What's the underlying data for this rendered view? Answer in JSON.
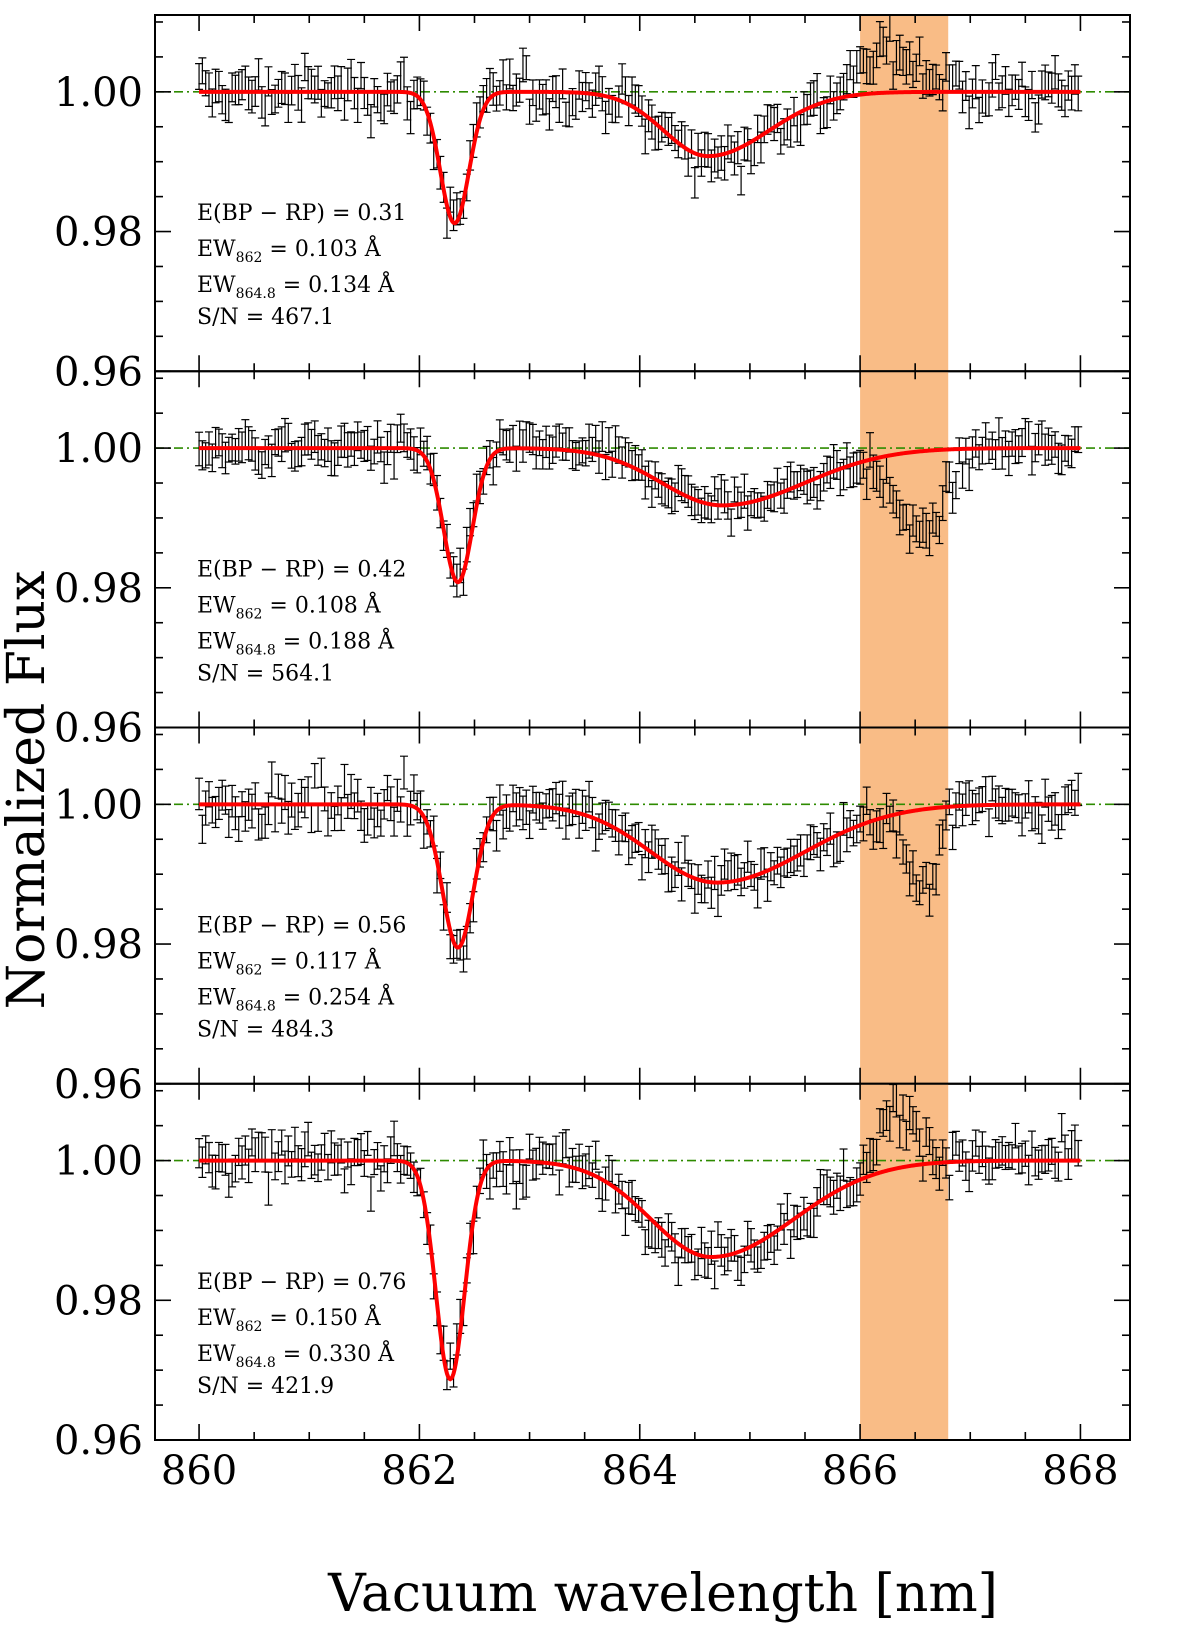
{
  "chart_data": {
    "type": "line",
    "title": "",
    "xlabel": "Vacuum wavelength [nm]",
    "ylabel": "Normalized Flux",
    "xlim": [
      859.6,
      868.45
    ],
    "ylim": [
      0.96,
      1.011
    ],
    "x_ticks": [
      860,
      862,
      864,
      866,
      868
    ],
    "x_tick_labels": [
      "860",
      "862",
      "864",
      "866",
      "868"
    ],
    "y_ticks": [
      0.96,
      0.98,
      1.0
    ],
    "y_tick_labels": [
      "0.96",
      "0.98",
      "1.00"
    ],
    "continuum_level": 1.0,
    "shaded_band": {
      "x_start": 866.0,
      "x_end": 866.8
    },
    "colors": {
      "fit": "#ff0000",
      "data": "#000000",
      "continuum": "#2e8b00",
      "band": "#f9bc86"
    },
    "panels": [
      {
        "ebv_label": "E(BP − RP) = 0.31",
        "ew862_label": "EW",
        "ew862_sub": "862",
        "ew862_value": " = 0.103 Å",
        "ew8648_label": "EW",
        "ew8648_sub": "864.8",
        "ew8648_value": " = 0.134 Å",
        "sn_label": "S/N = 467.1",
        "fit": {
          "d1": 0.0188,
          "c1": 862.32,
          "s1": 0.13,
          "d2": 0.0092,
          "c2": 864.62,
          "sl": 0.4,
          "sr": 0.55,
          "noise": 0.0028
        },
        "band_feature": {
          "amp": 0.006,
          "center": 866.3,
          "width": 0.25
        }
      },
      {
        "ebv_label": "E(BP − RP) = 0.42",
        "ew862_label": "EW",
        "ew862_sub": "862",
        "ew862_value": " = 0.108 Å",
        "ew8648_label": "EW",
        "ew8648_sub": "864.8",
        "ew8648_value": " = 0.188 Å",
        "sn_label": "S/N = 564.1",
        "fit": {
          "d1": 0.0192,
          "c1": 862.35,
          "s1": 0.13,
          "d2": 0.0082,
          "c2": 864.75,
          "sl": 0.55,
          "sr": 0.75,
          "noise": 0.0022
        },
        "band_feature": {
          "amp": -0.012,
          "center": 866.55,
          "width": 0.22
        }
      },
      {
        "ebv_label": "E(BP − RP) = 0.56",
        "ew862_label": "EW",
        "ew862_sub": "862",
        "ew862_value": " = 0.117 Å",
        "ew8648_label": "EW",
        "ew8648_sub": "864.8",
        "ew8648_value": " = 0.254 Å",
        "sn_label": "S/N = 484.3",
        "fit": {
          "d1": 0.0205,
          "c1": 862.35,
          "s1": 0.14,
          "d2": 0.0112,
          "c2": 864.7,
          "sl": 0.6,
          "sr": 0.8,
          "noise": 0.0028
        },
        "band_feature": {
          "amp": -0.013,
          "center": 866.55,
          "width": 0.12
        }
      },
      {
        "ebv_label": "E(BP − RP) = 0.76",
        "ew862_label": "EW",
        "ew862_sub": "862",
        "ew862_value": " = 0.150 Å",
        "ew8648_label": "EW",
        "ew8648_sub": "864.8",
        "ew8648_value": " = 0.330 Å",
        "sn_label": "S/N = 421.9",
        "fit": {
          "d1": 0.0313,
          "c1": 862.28,
          "s1": 0.13,
          "d2": 0.0138,
          "c2": 864.65,
          "sl": 0.55,
          "sr": 0.75,
          "noise": 0.0028
        },
        "band_feature": {
          "amp": 0.008,
          "center": 866.35,
          "width": 0.18
        }
      }
    ]
  }
}
